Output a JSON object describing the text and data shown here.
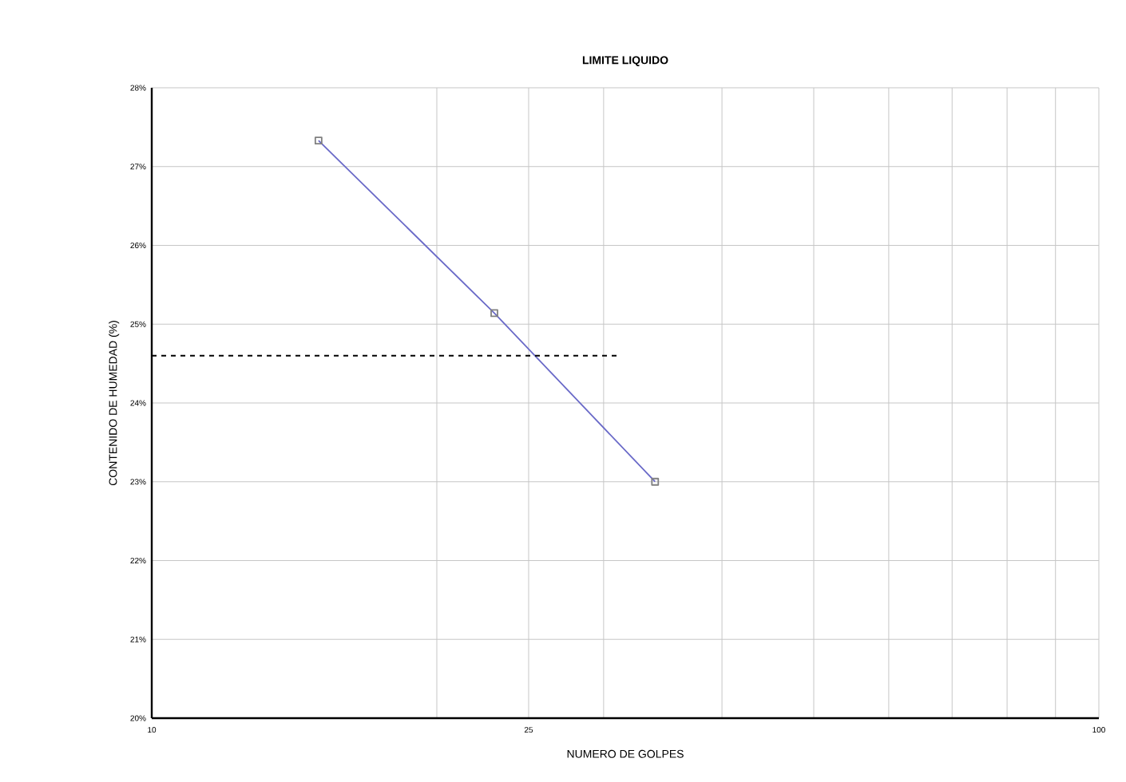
{
  "chart_data": {
    "type": "line",
    "title": "LIMITE LIQUIDO",
    "xlabel": "NUMERO DE GOLPES",
    "ylabel": "CONTENIDO DE HUMEDAD (%)",
    "log": "x",
    "grid": true,
    "xlim": [
      10,
      100
    ],
    "ylim": [
      20,
      28
    ],
    "xticks": [
      10,
      {
        "value": 20,
        "label": null
      },
      25,
      {
        "value": 30,
        "label": null
      },
      {
        "value": 40,
        "label": null
      },
      {
        "value": 50,
        "label": null
      },
      {
        "value": 60,
        "label": null
      },
      {
        "value": 70,
        "label": null
      },
      {
        "value": 80,
        "label": null
      },
      {
        "value": 90,
        "label": null
      },
      100
    ],
    "yticks": [
      {
        "value": 20,
        "label": "20%"
      },
      {
        "value": 21,
        "label": "21%"
      },
      {
        "value": 22,
        "label": "22%"
      },
      {
        "value": 23,
        "label": "23%"
      },
      {
        "value": 24,
        "label": "24%"
      },
      {
        "value": 25,
        "label": "25%"
      },
      {
        "value": 26,
        "label": "26%"
      },
      {
        "value": 27,
        "label": "27%"
      },
      {
        "value": 28,
        "label": "28%"
      }
    ],
    "series": [
      {
        "color": "#6a6ac8",
        "marker": "square",
        "line_style": "solid",
        "x": [
          15,
          23,
          34
        ],
        "values": [
          27.33,
          25.14,
          23.0
        ]
      },
      {
        "color": "#000000",
        "marker": "none",
        "line_style": "dashed",
        "x": [
          10,
          31
        ],
        "values": [
          24.6,
          24.6
        ]
      }
    ]
  }
}
